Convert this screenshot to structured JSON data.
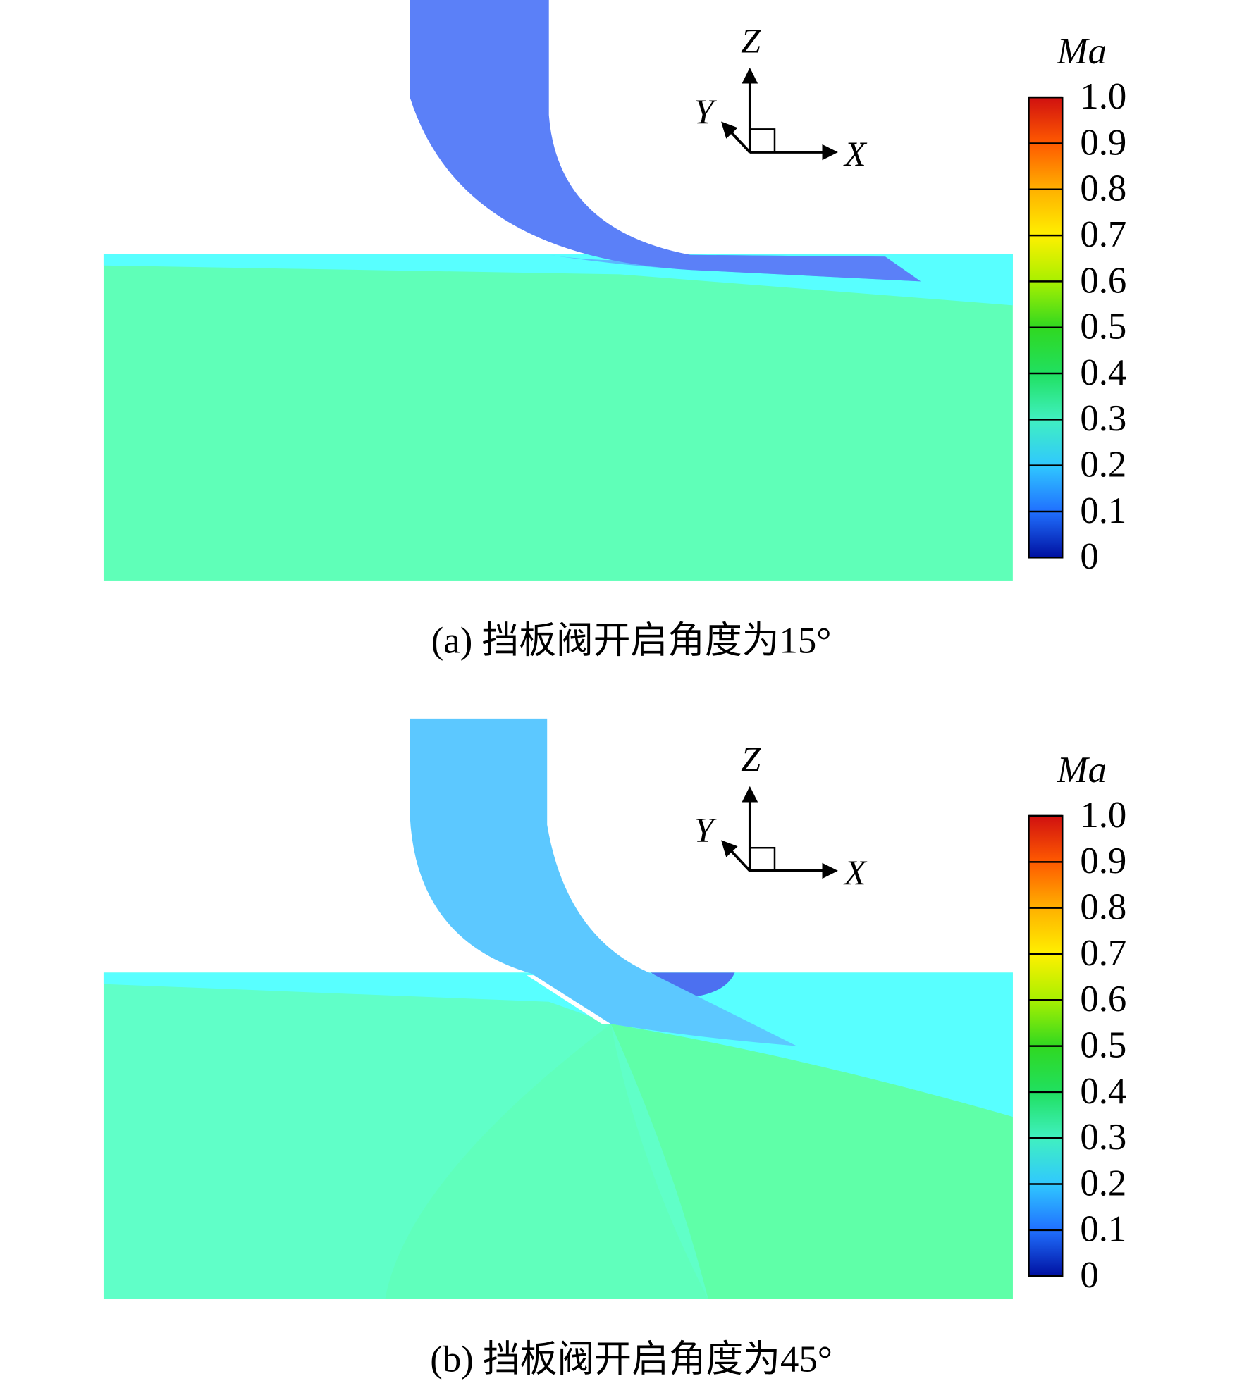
{
  "panels": [
    {
      "caption": "(a) 挡板阀开启角度为15°",
      "axes": {
        "x": "X",
        "y": "Y",
        "z": "Z"
      },
      "colorbar": {
        "title": "Ma",
        "labels": [
          "1.0",
          "0.9",
          "0.8",
          "0.7",
          "0.6",
          "0.5",
          "0.4",
          "0.3",
          "0.2",
          "0.1",
          "0"
        ]
      }
    },
    {
      "caption": "(b) 挡板阀开启角度为45°",
      "axes": {
        "x": "X",
        "y": "Y",
        "z": "Z"
      },
      "colorbar": {
        "title": "Ma",
        "labels": [
          "1.0",
          "0.9",
          "0.8",
          "0.7",
          "0.6",
          "0.5",
          "0.4",
          "0.3",
          "0.2",
          "0.1",
          "0"
        ]
      }
    }
  ]
}
